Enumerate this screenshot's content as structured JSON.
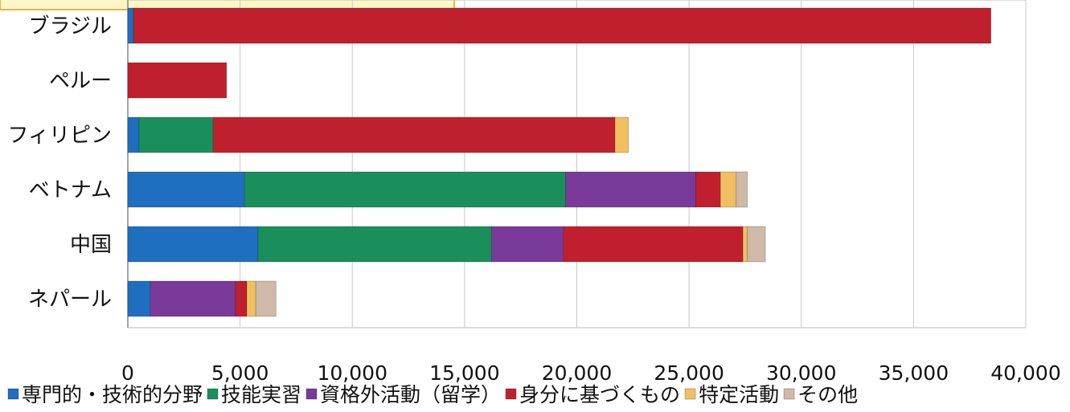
{
  "chart_data": {
    "type": "bar",
    "orientation": "horizontal",
    "stacked": true,
    "title": "",
    "xlabel": "",
    "ylabel": "",
    "xlim": [
      0,
      40000
    ],
    "xticks": [
      0,
      5000,
      10000,
      15000,
      20000,
      25000,
      30000,
      35000,
      40000
    ],
    "xtick_labels": [
      "0",
      "5,000",
      "10,000",
      "15,000",
      "20,000",
      "25,000",
      "30,000",
      "35,000",
      "40,000"
    ],
    "grid": "vertical",
    "legend_position": "bottom",
    "categories": [
      "ブラジル",
      "ペルー",
      "フィリピン",
      "ベトナム",
      "中国",
      "ネパール"
    ],
    "series": [
      {
        "name": "専門的・技術的分野",
        "color": "#1f6fc0",
        "values": [
          250,
          0,
          500,
          5200,
          5800,
          1000
        ]
      },
      {
        "name": "技能実習",
        "color": "#1a8f5c",
        "values": [
          0,
          0,
          3300,
          14300,
          10400,
          0
        ]
      },
      {
        "name": "資格外活動（留学）",
        "color": "#7a3a9a",
        "values": [
          0,
          0,
          0,
          5800,
          3200,
          3800
        ]
      },
      {
        "name": "身分に基づくもの",
        "color": "#c0202e",
        "values": [
          38200,
          4400,
          17900,
          1100,
          8000,
          500
        ]
      },
      {
        "name": "特定活動",
        "color": "#f0c060",
        "values": [
          0,
          0,
          600,
          700,
          200,
          400
        ]
      },
      {
        "name": "その他",
        "color": "#cfb9a8",
        "values": [
          0,
          0,
          0,
          500,
          800,
          900
        ]
      }
    ]
  }
}
